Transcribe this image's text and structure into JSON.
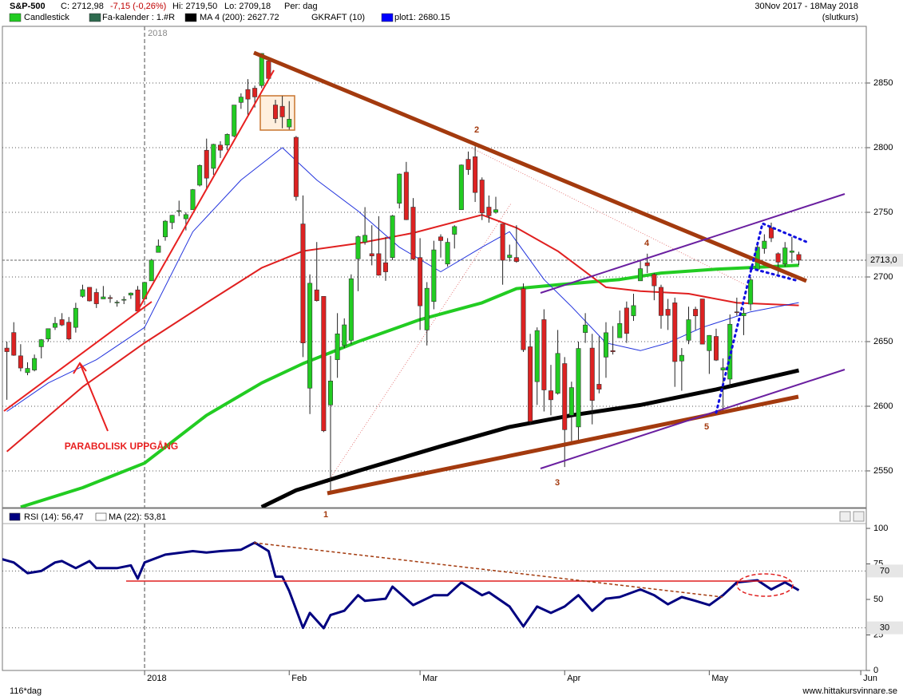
{
  "header": {
    "symbol": "S&P-500",
    "close": "C: 2712,98",
    "change": "-7,15 (-0,26%)",
    "high": "Hi: 2719,50",
    "low": "Lo: 2709,18",
    "period": "Per: dag",
    "range": "30Nov 2017 - 18May 2018",
    "price_type": "(slutkurs)"
  },
  "footer": {
    "bars": "116*dag",
    "site": "www.hittakursvinnare.se"
  },
  "chart_data": [
    {
      "type": "candlestick",
      "legend": [
        {
          "label": "Candlestick",
          "color": "#22cc22"
        },
        {
          "label": "Fa-kalender : 1.#R",
          "color": "#2e6b4f"
        },
        {
          "label": "MA 4 (200): 2627.72",
          "color": "#000000"
        },
        {
          "label": "GKRAFT (10)"
        },
        {
          "label": "plot1: 2680.15",
          "color": "#0000ff"
        }
      ],
      "up_color": "#22cc22",
      "down_color": "#dd2222",
      "xlim": [
        0,
        125.8
      ],
      "ylim": [
        2522.2,
        2892.6
      ],
      "yticks": [
        2550,
        2600,
        2650,
        2700,
        2750,
        2800,
        2850
      ],
      "grid": true,
      "year_marker": {
        "value": 21,
        "label": "2018"
      },
      "price_marker": {
        "value": 2712.98,
        "label": "2713,0"
      },
      "open": [
        2633,
        2645,
        2657,
        2639,
        2626,
        2628,
        2646,
        2652,
        2661,
        2667,
        2665,
        2661,
        2685,
        2692,
        2688,
        2683,
        2684,
        2680,
        2682,
        2686,
        2690,
        2683,
        2697,
        2719,
        2731,
        2742,
        2751,
        2745,
        2752,
        2771,
        2798,
        2784,
        2802,
        2802,
        2809,
        2835,
        2845,
        2846,
        2848,
        2867,
        2833,
        2832,
        2816,
        2808,
        2741,
        2614,
        2690,
        2685,
        2601,
        2636,
        2647,
        2651,
        2714,
        2727,
        2718,
        2718,
        2711,
        2715,
        2757,
        2781,
        2754,
        2715,
        2659,
        2681,
        2731,
        2710,
        2733,
        2752,
        2791,
        2793,
        2775,
        2754,
        2750,
        2741,
        2715,
        2715,
        2691,
        2646,
        2619,
        2667,
        2612,
        2610,
        2633,
        2593,
        2584,
        2657,
        2645,
        2617,
        2638,
        2643,
        2653,
        2676,
        2670,
        2697,
        2711,
        2702,
        2692,
        2675,
        2680,
        2635,
        2651,
        2675,
        2683,
        2643,
        2654,
        2628,
        2621,
        2673,
        2670,
        2679,
        2706,
        2722,
        2738,
        2718,
        2710,
        2719,
        2717.35
      ],
      "high": [
        2657,
        2650,
        2665,
        2648,
        2634,
        2640,
        2652,
        2660,
        2669,
        2672,
        2669,
        2680,
        2694,
        2692,
        2691,
        2693,
        2686,
        2682,
        2685,
        2688,
        2693,
        2696,
        2714,
        2729,
        2744,
        2748,
        2759,
        2750,
        2768,
        2787,
        2807,
        2803,
        2805,
        2811,
        2833,
        2842,
        2853,
        2848,
        2873,
        2870,
        2837,
        2840,
        2836,
        2809,
        2763,
        2702,
        2727,
        2685,
        2639,
        2672,
        2668,
        2702,
        2732,
        2754,
        2740,
        2747,
        2731,
        2748,
        2780,
        2789,
        2761,
        2730,
        2696,
        2728,
        2733,
        2730,
        2740,
        2787,
        2797,
        2801,
        2777,
        2763,
        2762,
        2741,
        2725,
        2740,
        2695,
        2656,
        2661,
        2675,
        2632,
        2659,
        2638,
        2619,
        2650,
        2672,
        2656,
        2654,
        2665,
        2662,
        2674,
        2681,
        2687,
        2713,
        2718,
        2703,
        2694,
        2683,
        2684,
        2645,
        2677,
        2677,
        2683,
        2655,
        2660,
        2637,
        2671,
        2684,
        2676,
        2700,
        2727,
        2733,
        2742,
        2719,
        2727,
        2731,
        2719.5
      ],
      "low": [
        2633,
        2605,
        2639,
        2627,
        2624,
        2627,
        2637,
        2650,
        2659,
        2662,
        2651,
        2657,
        2684,
        2681,
        2676,
        2683,
        2680,
        2677,
        2679,
        2683,
        2673,
        2683,
        2697,
        2719,
        2728,
        2737,
        2747,
        2736,
        2752,
        2770,
        2768,
        2779,
        2792,
        2798,
        2808,
        2830,
        2824,
        2831,
        2846,
        2852,
        2819,
        2815,
        2814,
        2759,
        2638,
        2594,
        2681,
        2580,
        2533,
        2622,
        2645,
        2648,
        2689,
        2725,
        2709,
        2701,
        2697,
        2713,
        2753,
        2744,
        2713,
        2659,
        2647,
        2675,
        2715,
        2708,
        2722,
        2752,
        2779,
        2758,
        2744,
        2742,
        2749,
        2694,
        2712,
        2711,
        2642,
        2586,
        2601,
        2596,
        2593,
        2609,
        2553,
        2573,
        2573,
        2649,
        2586,
        2610,
        2622,
        2640,
        2653,
        2649,
        2666,
        2697,
        2703,
        2682,
        2660,
        2659,
        2615,
        2612,
        2648,
        2659,
        2648,
        2625,
        2635,
        2594,
        2615,
        2670,
        2655,
        2674,
        2706,
        2718,
        2727,
        2702,
        2708,
        2711,
        2709.18
      ],
      "close": [
        2647.58,
        2642.22,
        2639.44,
        2629.57,
        2629.27,
        2636.98,
        2651.5,
        2659.99,
        2664.11,
        2662.85,
        2652.01,
        2675.81,
        2690.16,
        2681.47,
        2679.25,
        2684.57,
        2683.34,
        2680.5,
        2682.62,
        2687.54,
        2673.61,
        2695.81,
        2713.06,
        2723.99,
        2743.15,
        2747.71,
        2751.29,
        2748.23,
        2767.56,
        2786.24,
        2776.42,
        2802.56,
        2798.03,
        2810.3,
        2832.97,
        2839.13,
        2837.54,
        2839.25,
        2872.87,
        2853.53,
        2822.43,
        2823.81,
        2821.98,
        2762.13,
        2648.94,
        2695.14,
        2681.66,
        2581,
        2619.55,
        2656,
        2662.94,
        2698.63,
        2731.2,
        2732.22,
        2716.26,
        2701.33,
        2703.96,
        2747.3,
        2779.6,
        2744.28,
        2713.83,
        2677.67,
        2691.25,
        2720.94,
        2728.12,
        2726.8,
        2738.97,
        2786.57,
        2783.02,
        2765.31,
        2749.48,
        2747.33,
        2752.01,
        2712.92,
        2716.94,
        2711.93,
        2643.69,
        2588.26,
        2658.55,
        2612.62,
        2605,
        2640.87,
        2581.88,
        2614.45,
        2644.69,
        2662.84,
        2604.47,
        2613.16,
        2656.87,
        2642.19,
        2663.99,
        2656.3,
        2677.84,
        2706.39,
        2708.64,
        2693.13,
        2670.14,
        2670.29,
        2634.56,
        2639.4,
        2666.94,
        2669.91,
        2648.05,
        2654.8,
        2635.67,
        2629.73,
        2663.42,
        2672.63,
        2671.92,
        2697.79,
        2723.07,
        2727.72,
        2730.13,
        2711.45,
        2722.46,
        2720.13,
        2712.98
      ],
      "lines": [
        {
          "color": "#000000",
          "width": 5,
          "x": [
            38,
            43,
            52,
            64,
            74,
            83,
            93,
            104,
            116
          ],
          "values": [
            2522,
            2535,
            2550,
            2569,
            2584,
            2593,
            2601,
            2613,
            2627.72
          ]
        },
        {
          "color": "#22cc22",
          "width": 4,
          "x": [
            3,
            12,
            21,
            30,
            38,
            44,
            52,
            61,
            70,
            75,
            81,
            90,
            96,
            104,
            116
          ],
          "values": [
            2522,
            2537,
            2556,
            2593,
            2618,
            2633,
            2650,
            2667,
            2680,
            2691,
            2694,
            2698,
            2703,
            2706,
            2709
          ]
        },
        {
          "color": "#e02020",
          "width": 2,
          "x": [
            1,
            12,
            21,
            30,
            38,
            44,
            52,
            60,
            70,
            75,
            81,
            88,
            93,
            100,
            107,
            116
          ],
          "values": [
            2565,
            2615,
            2649,
            2680,
            2707,
            2720,
            2726,
            2734,
            2748,
            2738,
            2720,
            2692,
            2689,
            2687,
            2680,
            2678
          ]
        },
        {
          "color": "#2233dd",
          "width": 1,
          "x": [
            1,
            7,
            14,
            21,
            28,
            35,
            41,
            46,
            52,
            58,
            64,
            70,
            74,
            79,
            83,
            88,
            93,
            97,
            102,
            109,
            116
          ],
          "values": [
            2596,
            2618,
            2636,
            2661,
            2735,
            2775,
            2800,
            2775,
            2751,
            2723,
            2704,
            2723,
            2735,
            2698,
            2677,
            2649,
            2643,
            2649,
            2661,
            2673,
            2680.15
          ]
        }
      ],
      "annotations": [
        "1",
        "2",
        "3",
        "4",
        "5",
        "PARABOLISK UPPGÅNG"
      ]
    },
    {
      "type": "line",
      "legend": [
        {
          "label": "RSI (14): 56,47",
          "color": "#000080"
        },
        {
          "label": "MA (22): 53,81",
          "color": "#ffffff"
        }
      ],
      "color": "#000080",
      "xlim": [
        0,
        125.8
      ],
      "ylim": [
        0,
        100
      ],
      "yticks": [
        0,
        25,
        50,
        75,
        100
      ],
      "levels": [
        70,
        30
      ],
      "xticks": [
        {
          "value": 21,
          "label": "2018"
        },
        {
          "value": 42,
          "label": "Feb"
        },
        {
          "value": 61,
          "label": "Mar"
        },
        {
          "value": 82,
          "label": "Apr"
        },
        {
          "value": 103,
          "label": "May"
        },
        {
          "value": 125,
          "label": "Jun"
        }
      ],
      "x": [
        0,
        2,
        4,
        6,
        8,
        9,
        11,
        13,
        14,
        17,
        19,
        20,
        21,
        24,
        28,
        30,
        32,
        35,
        37,
        39,
        40,
        41,
        42,
        44,
        45,
        47,
        48,
        50,
        52,
        53,
        56,
        57,
        60,
        63,
        65,
        67,
        70,
        71,
        74,
        76,
        78,
        80,
        82,
        84,
        86,
        88,
        90,
        93,
        95,
        97,
        99,
        101,
        103,
        105,
        107,
        110,
        112,
        114,
        116
      ],
      "values": [
        78.7,
        76,
        68.5,
        70,
        76,
        77,
        72,
        77,
        72,
        72,
        74,
        64.6,
        76,
        81.5,
        84,
        83,
        84,
        85,
        90,
        84,
        66,
        66,
        56,
        30,
        40.5,
        29.8,
        39,
        42,
        53,
        49,
        50.5,
        59,
        46,
        53,
        53,
        62,
        53,
        55,
        45,
        31,
        45,
        40.5,
        45,
        53,
        42,
        50.5,
        51.7,
        57,
        53,
        46.6,
        51.7,
        49,
        46,
        53,
        62,
        63.5,
        57,
        62,
        56.47
      ]
    }
  ]
}
